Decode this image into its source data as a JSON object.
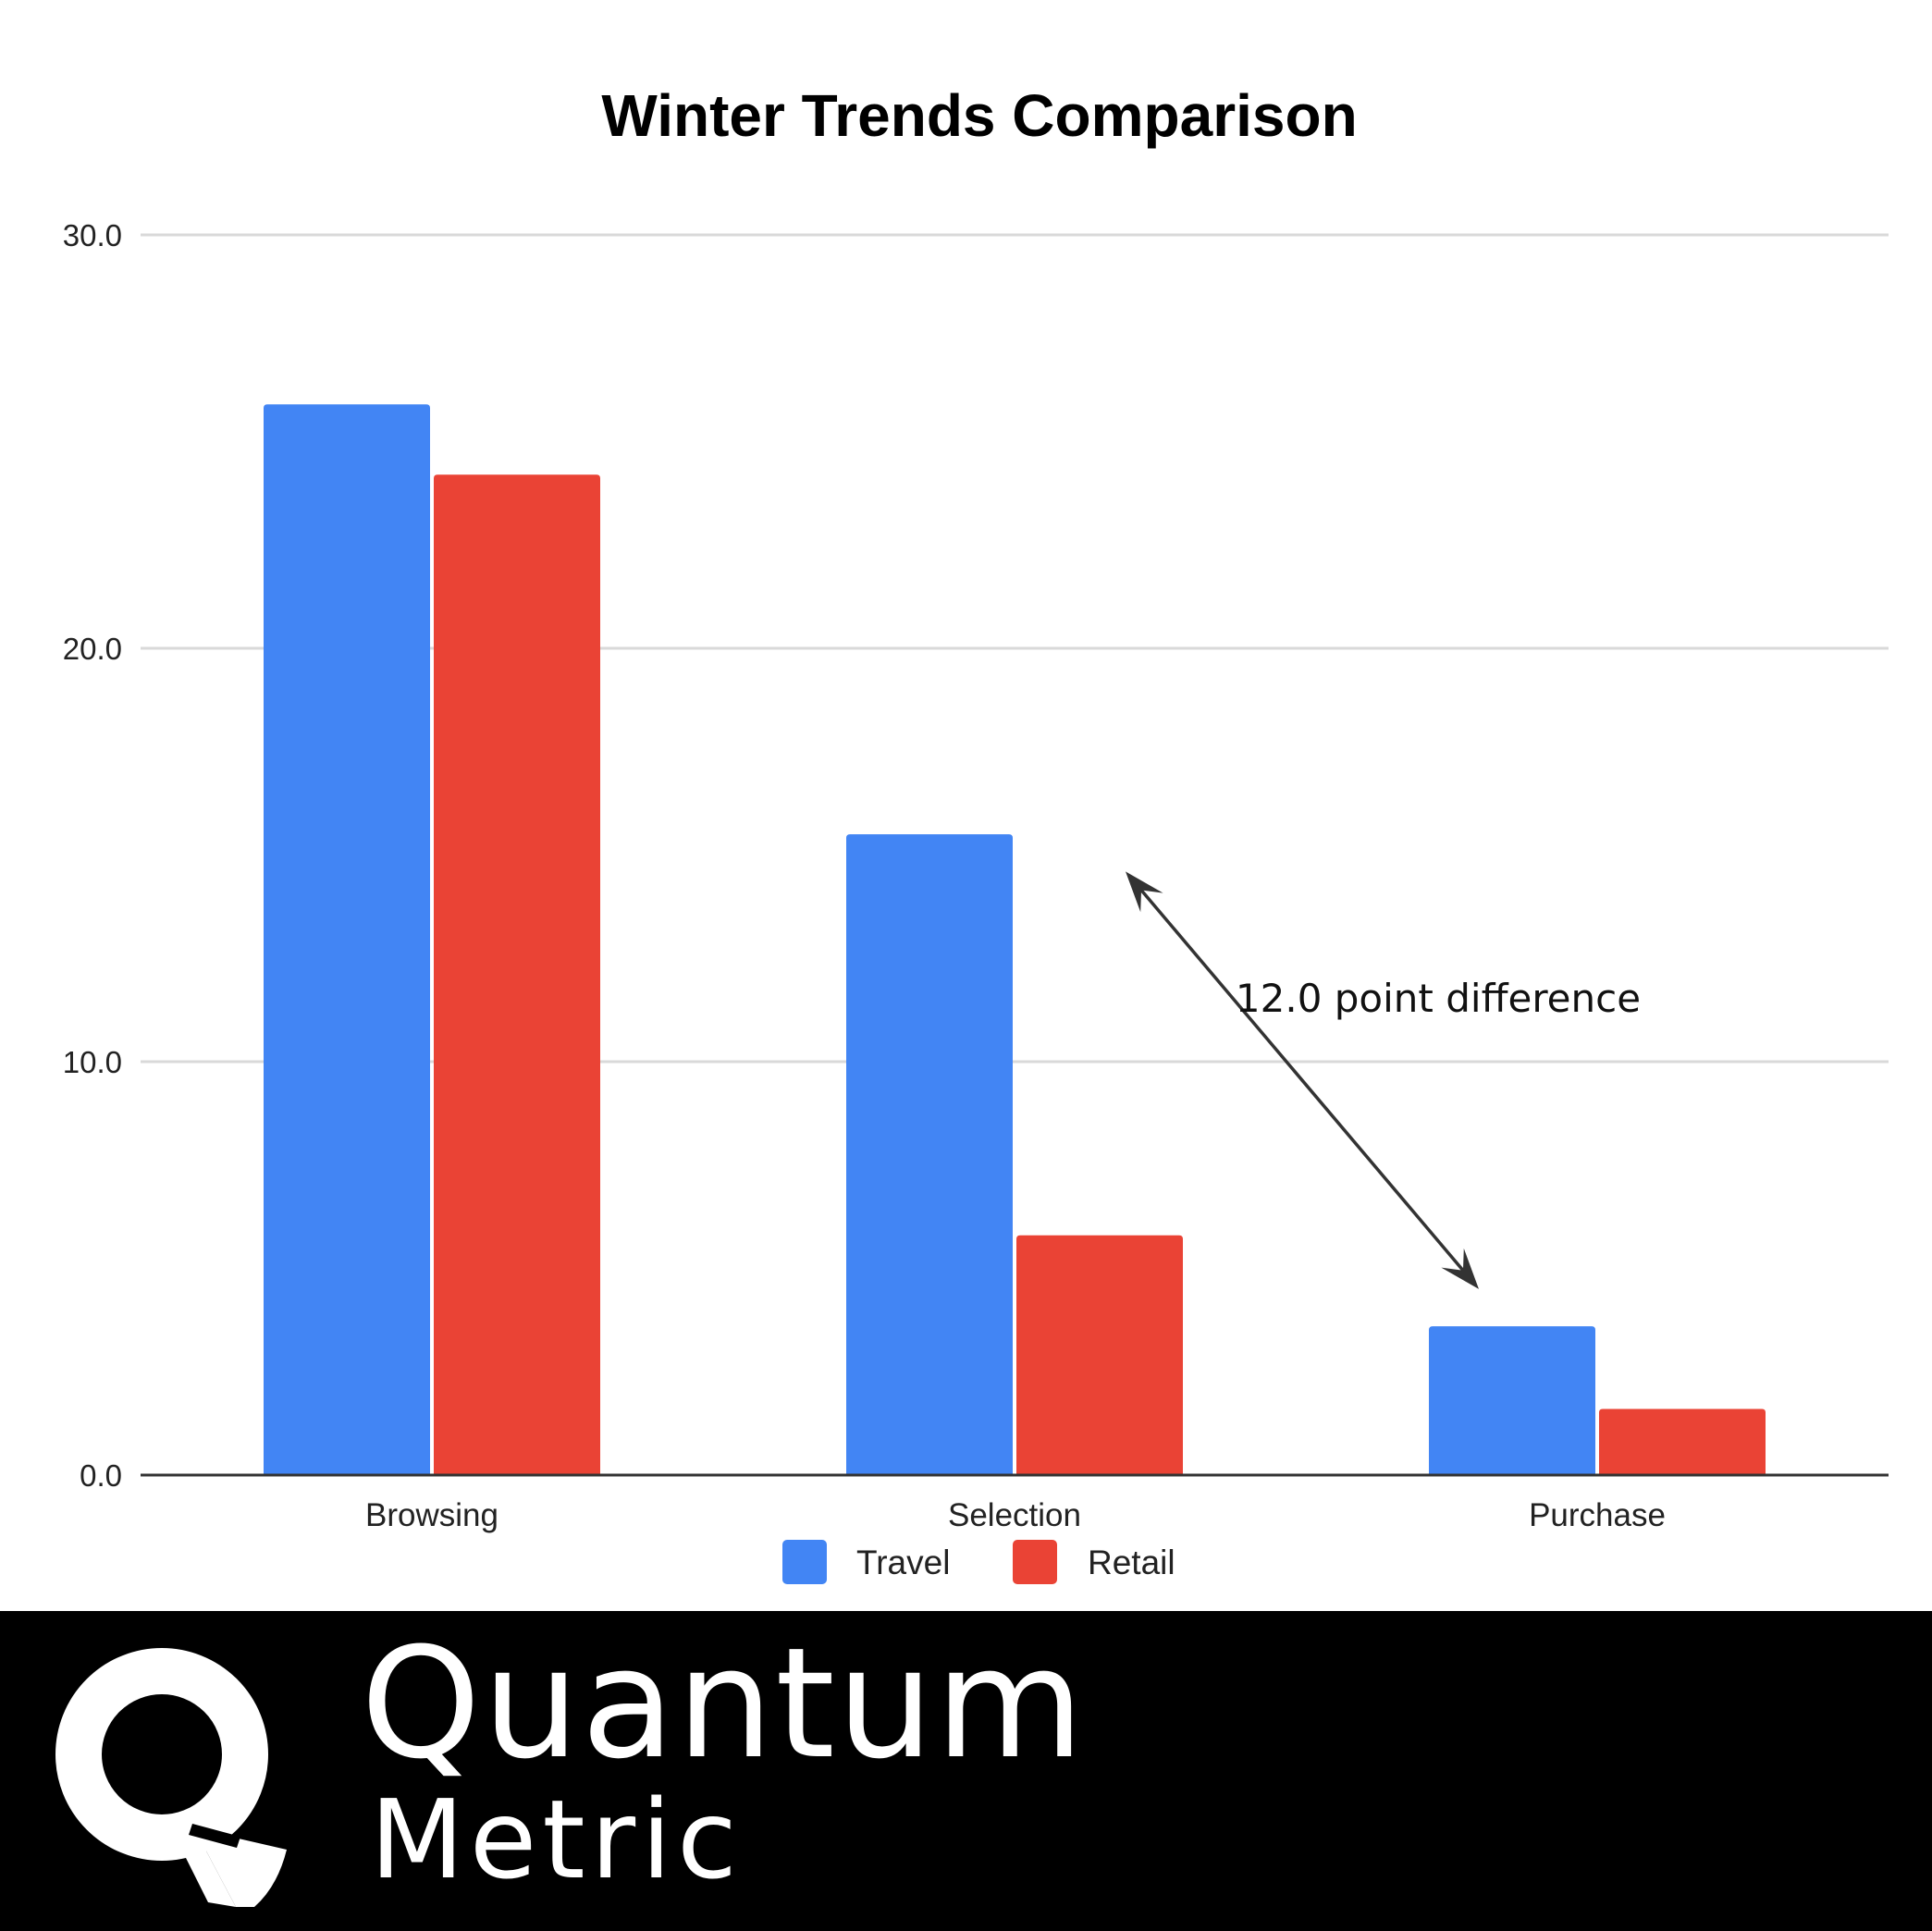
{
  "chart_data": {
    "type": "bar",
    "title": "Winter Trends Comparison",
    "categories": [
      "Browsing",
      "Selection",
      "Purchase"
    ],
    "series": [
      {
        "name": "Travel",
        "color": "#4285F4",
        "values": [
          25.9,
          15.5,
          3.6
        ]
      },
      {
        "name": "Retail",
        "color": "#EA4335",
        "values": [
          24.2,
          5.8,
          1.6
        ]
      }
    ],
    "yticks": [
      "0.0",
      "10.0",
      "20.0",
      "30.0"
    ],
    "ylim": [
      0,
      30
    ],
    "grid": true,
    "legend": "bottom",
    "annotation": {
      "text": "12.0 point difference",
      "from": {
        "category": "Selection",
        "value": 14.6
      },
      "to": {
        "category": "Purchase",
        "value": 4.5
      }
    }
  },
  "footer": {
    "brand_line1": "Quantum",
    "brand_line2": "Metric",
    "logo_icon": "quantum-metric-q-logo-icon"
  }
}
